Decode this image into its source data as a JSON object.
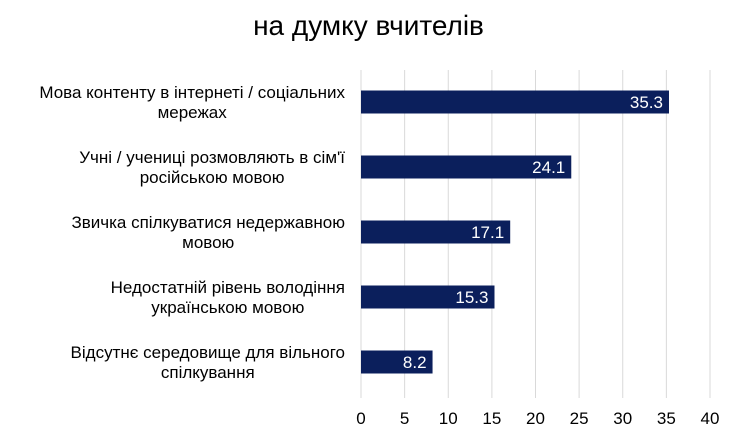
{
  "chart_data": {
    "type": "bar",
    "orientation": "horizontal",
    "title": "на думку  вчителів",
    "categories": [
      [
        "Мова контенту в інтернеті / соціальних",
        "мережах"
      ],
      [
        "Учні / учениці розмовляють в сім'ї",
        "російською мовою"
      ],
      [
        "Звичка спілкуватися  недержавною",
        "мовою"
      ],
      [
        "Недостатній рівень володіння",
        "українською мовою"
      ],
      [
        "Відсутнє середовище для вільного",
        "спілкування"
      ]
    ],
    "values": [
      35.3,
      24.1,
      17.1,
      15.3,
      8.2
    ],
    "data_labels": [
      "35.3",
      "24.1",
      "17.1",
      "15.3",
      "8.2"
    ],
    "xlim": [
      0,
      40
    ],
    "x_ticks": [
      "0",
      "5",
      "10",
      "15",
      "20",
      "25",
      "30",
      "35",
      "40"
    ],
    "grid": "vertical",
    "bar_color": "#0b1f5c",
    "grid_color": "#d9d9d9",
    "data_label_color": "#ffffff"
  }
}
